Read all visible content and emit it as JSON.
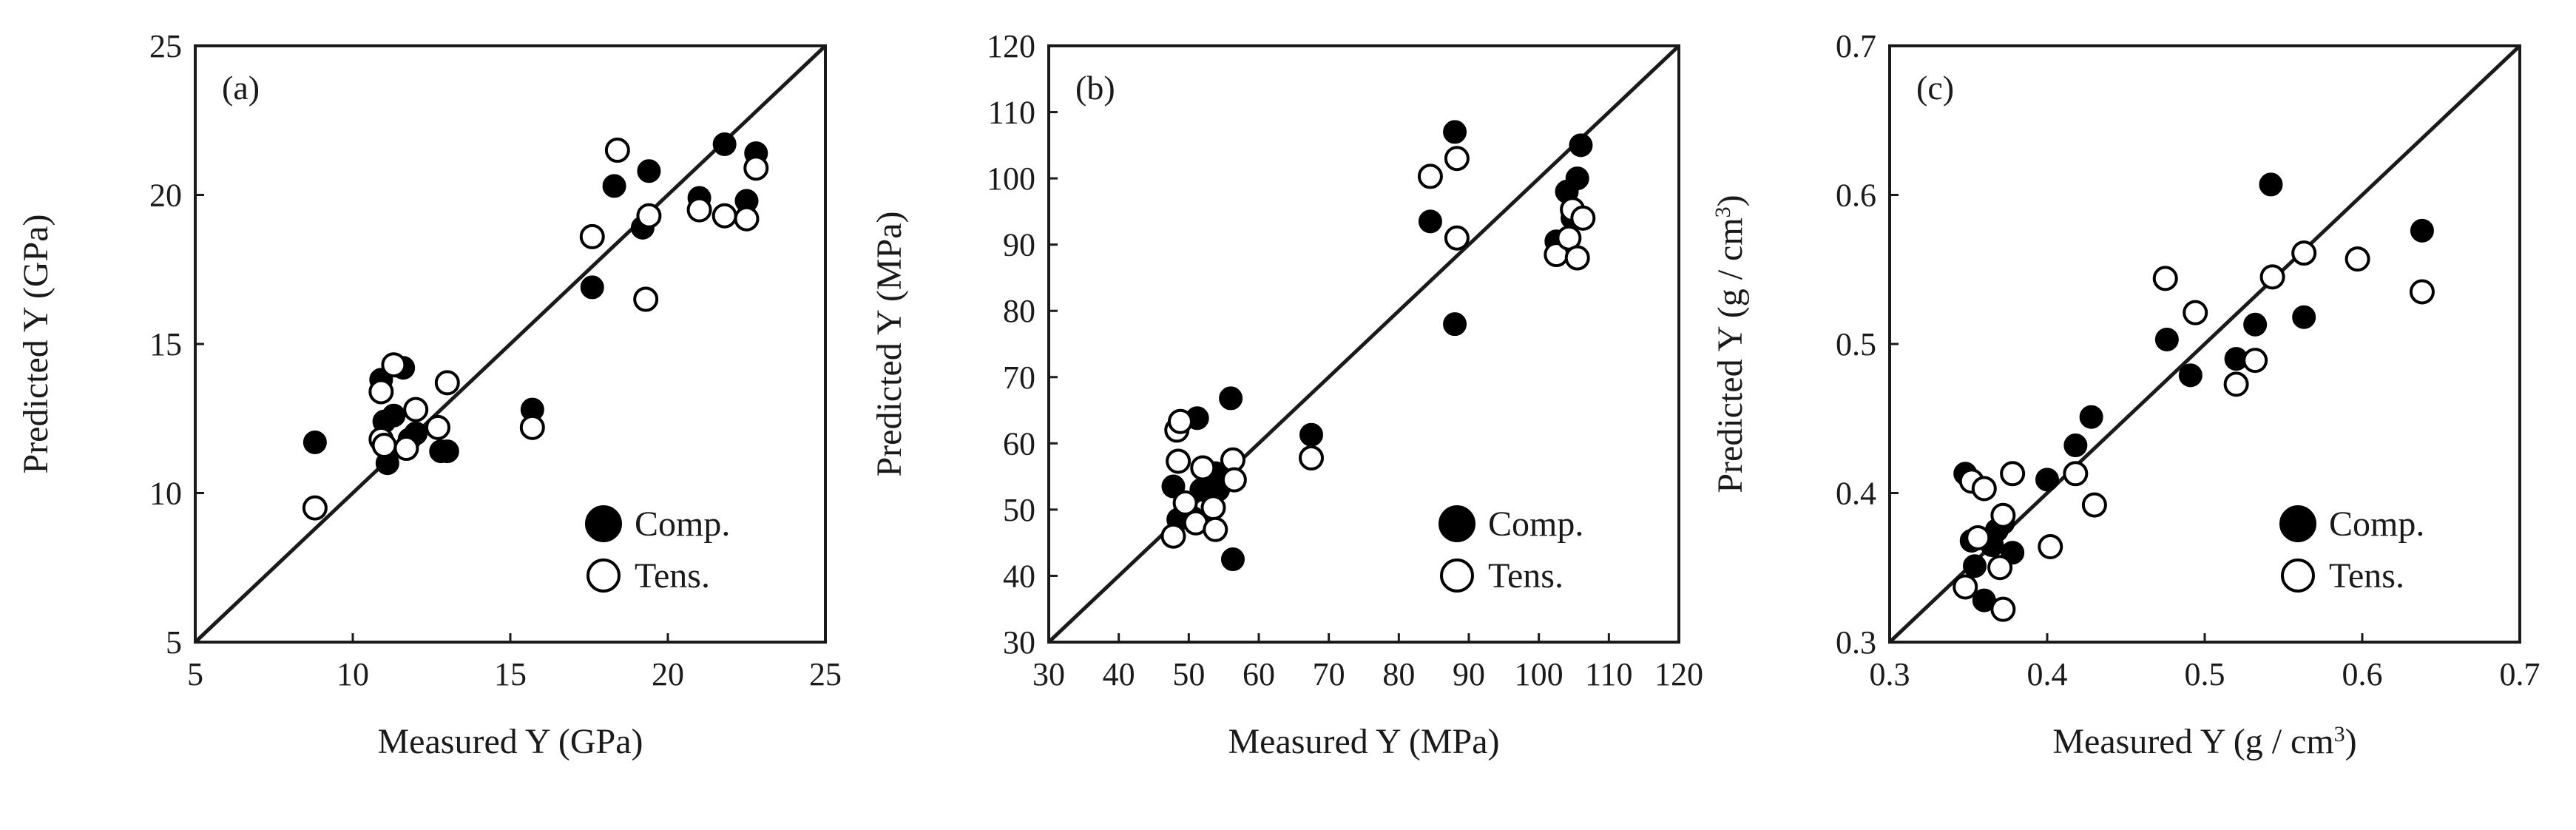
{
  "chart_data": [
    {
      "type": "scatter",
      "panel_label": "(a)",
      "xlabel": "Measured Y (GPa)",
      "ylabel": "Predicted Y (GPa)",
      "xlim": [
        5,
        25
      ],
      "ylim": [
        5,
        25
      ],
      "xticks": [
        "5",
        "10",
        "15",
        "20",
        "25"
      ],
      "yticks": [
        "5",
        "10",
        "15",
        "20",
        "25"
      ],
      "reference_line": "y = x",
      "legend": {
        "position": "bottom-right",
        "entries": [
          "Comp.",
          "Tens."
        ]
      },
      "series": [
        {
          "name": "Comp.",
          "marker": "filled-circle",
          "points": [
            [
              8.8,
              11.7
            ],
            [
              10.9,
              13.8
            ],
            [
              11.0,
              12.4
            ],
            [
              11.1,
              11.0
            ],
            [
              11.3,
              12.6
            ],
            [
              11.6,
              14.2
            ],
            [
              11.8,
              11.8
            ],
            [
              12.0,
              12.0
            ],
            [
              12.8,
              11.4
            ],
            [
              13.0,
              11.4
            ],
            [
              15.7,
              12.8
            ],
            [
              17.6,
              16.9
            ],
            [
              18.3,
              20.3
            ],
            [
              19.2,
              18.9
            ],
            [
              19.4,
              20.8
            ],
            [
              21.0,
              19.9
            ],
            [
              21.8,
              21.7
            ],
            [
              22.5,
              19.8
            ],
            [
              22.8,
              21.4
            ]
          ]
        },
        {
          "name": "Tens.",
          "marker": "open-circle",
          "points": [
            [
              8.8,
              9.5
            ],
            [
              10.9,
              13.4
            ],
            [
              10.9,
              11.8
            ],
            [
              11.0,
              11.6
            ],
            [
              11.3,
              14.3
            ],
            [
              11.7,
              11.5
            ],
            [
              12.0,
              12.8
            ],
            [
              12.7,
              12.2
            ],
            [
              13.0,
              13.7
            ],
            [
              15.7,
              12.2
            ],
            [
              17.6,
              18.6
            ],
            [
              18.4,
              21.5
            ],
            [
              19.3,
              16.5
            ],
            [
              19.4,
              19.3
            ],
            [
              21.0,
              19.5
            ],
            [
              21.8,
              19.3
            ],
            [
              22.5,
              19.2
            ],
            [
              22.8,
              20.9
            ]
          ]
        }
      ]
    },
    {
      "type": "scatter",
      "panel_label": "(b)",
      "xlabel": "Measured Y (MPa)",
      "ylabel": "Predicted Y (MPa)",
      "xlim": [
        30,
        120
      ],
      "ylim": [
        30,
        120
      ],
      "xticks": [
        "30",
        "40",
        "50",
        "60",
        "70",
        "80",
        "90",
        "100",
        "110",
        "120"
      ],
      "yticks": [
        "30",
        "40",
        "50",
        "60",
        "70",
        "80",
        "90",
        "100",
        "110",
        "120"
      ],
      "reference_line": "y = x",
      "legend": {
        "position": "bottom-right",
        "entries": [
          "Comp.",
          "Tens."
        ]
      },
      "series": [
        {
          "name": "Comp.",
          "marker": "filled-circle",
          "points": [
            [
              47.8,
              53.5
            ],
            [
              48.5,
              48.5
            ],
            [
              49.5,
              50.0
            ],
            [
              50.5,
              48.8
            ],
            [
              51.2,
              63.8
            ],
            [
              51.8,
              53.0
            ],
            [
              53.0,
              52.5
            ],
            [
              53.8,
              55.5
            ],
            [
              54.2,
              53.0
            ],
            [
              56.0,
              66.8
            ],
            [
              56.3,
              42.5
            ],
            [
              67.5,
              61.3
            ],
            [
              84.5,
              93.5
            ],
            [
              88.0,
              107.0
            ],
            [
              88.0,
              78.0
            ],
            [
              102.5,
              90.5
            ],
            [
              104.0,
              98.0
            ],
            [
              104.8,
              94.0
            ],
            [
              105.5,
              100.0
            ],
            [
              106.0,
              105.0
            ]
          ]
        },
        {
          "name": "Tens.",
          "marker": "open-circle",
          "points": [
            [
              47.8,
              46.0
            ],
            [
              48.3,
              62.0
            ],
            [
              48.5,
              57.3
            ],
            [
              48.8,
              63.3
            ],
            [
              49.5,
              51.0
            ],
            [
              51.0,
              48.0
            ],
            [
              52.0,
              56.3
            ],
            [
              53.5,
              50.3
            ],
            [
              53.8,
              47.0
            ],
            [
              56.3,
              57.5
            ],
            [
              56.5,
              54.5
            ],
            [
              67.5,
              57.8
            ],
            [
              84.5,
              100.3
            ],
            [
              88.3,
              103.0
            ],
            [
              88.3,
              91.0
            ],
            [
              102.5,
              88.5
            ],
            [
              104.3,
              91.0
            ],
            [
              104.8,
              95.3
            ],
            [
              105.5,
              88.0
            ],
            [
              106.3,
              94.0
            ]
          ]
        }
      ]
    },
    {
      "type": "scatter",
      "panel_label": "(c)",
      "xlabel": "Measured Y (g / cm³)",
      "ylabel": "Predicted Y (g / cm³)",
      "xlim": [
        0.3,
        0.7
      ],
      "ylim": [
        0.3,
        0.7
      ],
      "xticks": [
        "0.3",
        "0.4",
        "0.5",
        "0.6",
        "0.7"
      ],
      "yticks": [
        "0.3",
        "0.4",
        "0.5",
        "0.6",
        "0.7"
      ],
      "reference_line": "y = x",
      "legend": {
        "position": "bottom-right",
        "entries": [
          "Comp.",
          "Tens."
        ]
      },
      "series": [
        {
          "name": "Comp.",
          "marker": "filled-circle",
          "points": [
            [
              0.348,
              0.413
            ],
            [
              0.352,
              0.368
            ],
            [
              0.354,
              0.351
            ],
            [
              0.36,
              0.328
            ],
            [
              0.365,
              0.365
            ],
            [
              0.368,
              0.375
            ],
            [
              0.372,
              0.38
            ],
            [
              0.378,
              0.36
            ],
            [
              0.4,
              0.409
            ],
            [
              0.418,
              0.432
            ],
            [
              0.428,
              0.451
            ],
            [
              0.476,
              0.503
            ],
            [
              0.491,
              0.479
            ],
            [
              0.52,
              0.49
            ],
            [
              0.532,
              0.513
            ],
            [
              0.542,
              0.607
            ],
            [
              0.563,
              0.518
            ],
            [
              0.597,
              0.557
            ],
            [
              0.638,
              0.576
            ]
          ]
        },
        {
          "name": "Tens.",
          "marker": "open-circle",
          "points": [
            [
              0.348,
              0.337
            ],
            [
              0.352,
              0.408
            ],
            [
              0.356,
              0.37
            ],
            [
              0.36,
              0.403
            ],
            [
              0.37,
              0.35
            ],
            [
              0.372,
              0.385
            ],
            [
              0.372,
              0.322
            ],
            [
              0.378,
              0.413
            ],
            [
              0.402,
              0.364
            ],
            [
              0.418,
              0.413
            ],
            [
              0.43,
              0.392
            ],
            [
              0.475,
              0.544
            ],
            [
              0.494,
              0.521
            ],
            [
              0.52,
              0.473
            ],
            [
              0.532,
              0.489
            ],
            [
              0.543,
              0.545
            ],
            [
              0.563,
              0.561
            ],
            [
              0.597,
              0.557
            ],
            [
              0.638,
              0.535
            ]
          ]
        }
      ]
    }
  ]
}
